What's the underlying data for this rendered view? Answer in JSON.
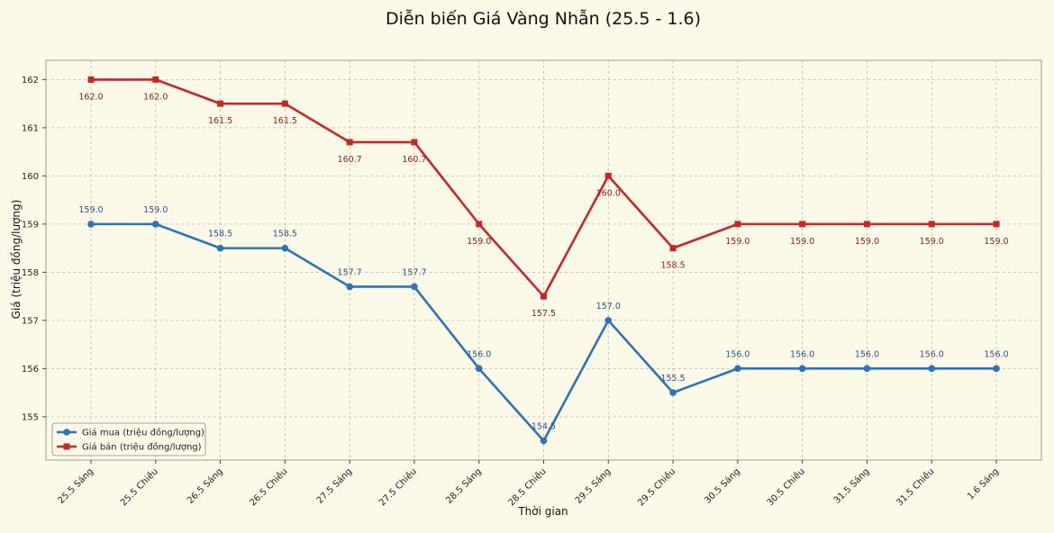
{
  "chart_data": {
    "type": "line",
    "title": "Diễn biến Giá Vàng Nhẫn (25.5 - 1.6)",
    "xlabel": "Thời gian",
    "ylabel": "Giá (triệu đồng/lượng)",
    "categories": [
      "25.5 Sáng",
      "25.5 Chiều",
      "26.5 Sáng",
      "26.5 Chiều",
      "27.5 Sáng",
      "27.5 Chiều",
      "28.5 Sáng",
      "28.5 Chiều",
      "29.5 Sáng",
      "29.5 Chiều",
      "30.5 Sáng",
      "30.5 Chiều",
      "31.5 Sáng",
      "31.5 Chiều",
      "1.6 Sáng"
    ],
    "ylim": [
      154.1,
      162.4
    ],
    "yticks": [
      155,
      156,
      157,
      158,
      159,
      160,
      161,
      162
    ],
    "grid": true,
    "legend_position": "bottom-left",
    "series": [
      {
        "name": "Giá mua (triệu đồng/lượng)",
        "color": "#2e74b5",
        "marker": "circle",
        "label_position": "above",
        "values": [
          159.0,
          159.0,
          158.5,
          158.5,
          157.7,
          157.7,
          156.0,
          154.5,
          157.0,
          155.5,
          156.0,
          156.0,
          156.0,
          156.0,
          156.0
        ]
      },
      {
        "name": "Giá bán (triệu đồng/lượng)",
        "color": "#c62828",
        "marker": "square",
        "label_position": "below",
        "values": [
          162.0,
          162.0,
          161.5,
          161.5,
          160.7,
          160.7,
          159.0,
          157.5,
          160.0,
          158.5,
          159.0,
          159.0,
          159.0,
          159.0,
          159.0
        ]
      }
    ]
  }
}
